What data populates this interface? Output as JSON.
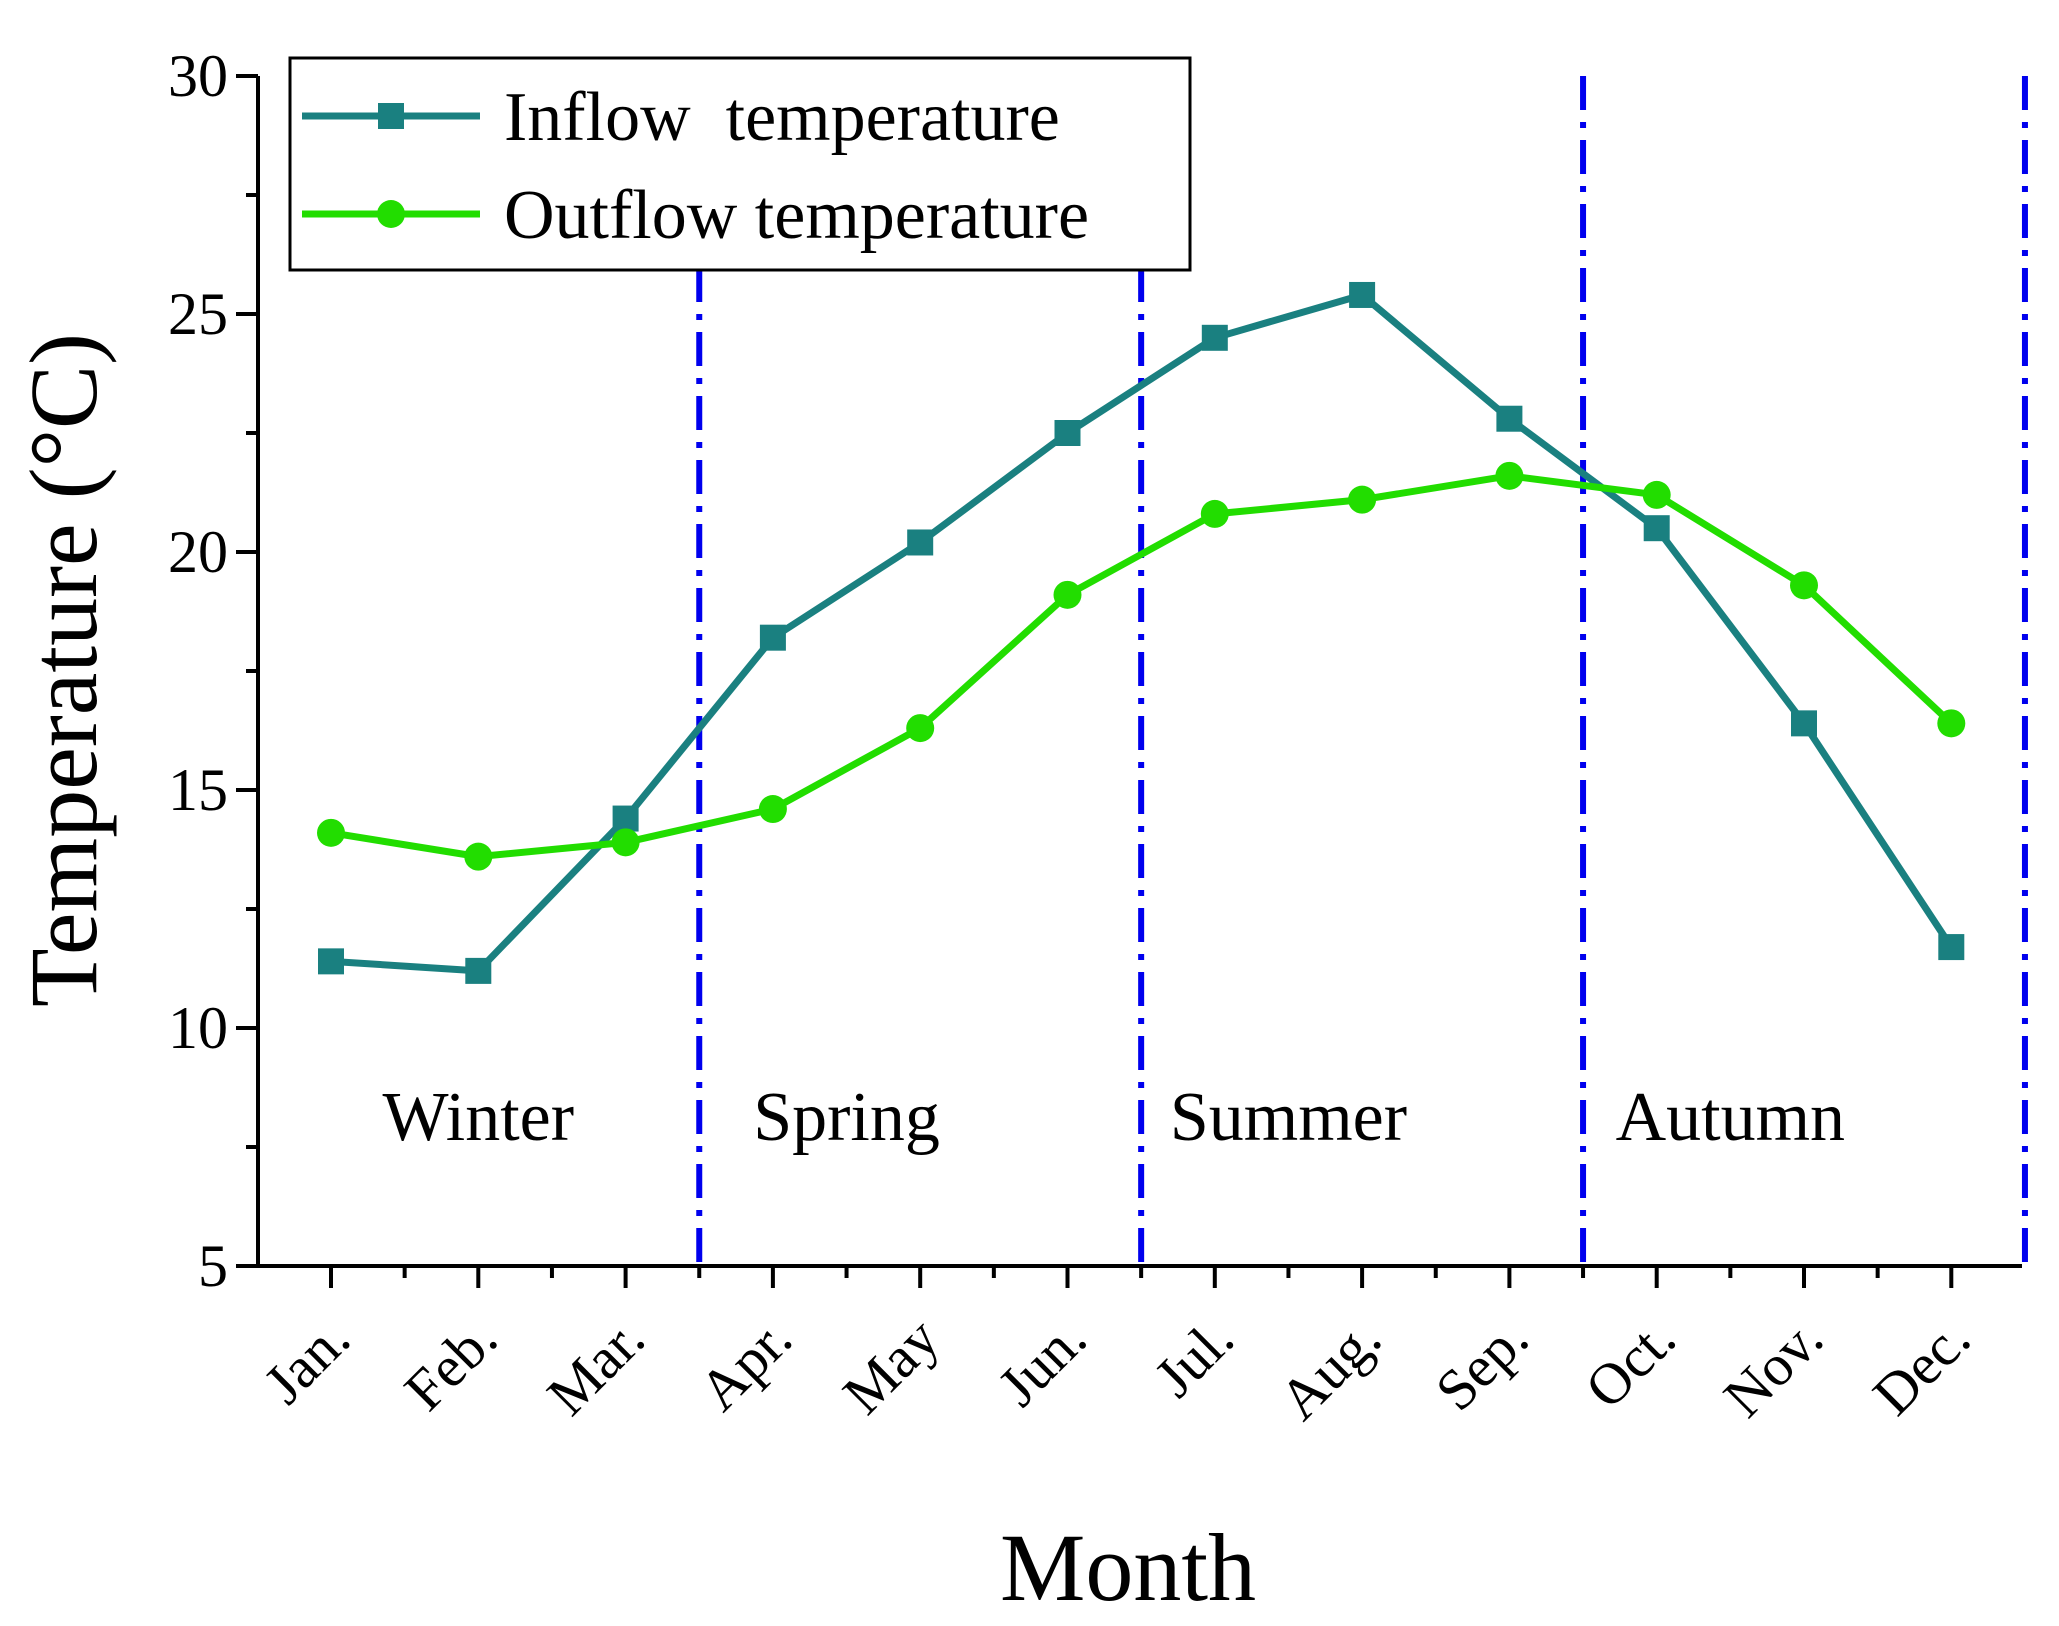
{
  "chart_data": {
    "type": "line",
    "title": "",
    "xlabel": "Month",
    "ylabel": "Temperature (°C)",
    "ylim": [
      5,
      30
    ],
    "yticks": [
      5,
      10,
      15,
      20,
      25,
      30
    ],
    "categories": [
      "Jan.",
      "Feb.",
      "Mar.",
      "Apr.",
      "May",
      "Jun.",
      "Jul.",
      "Aug.",
      "Sep.",
      "Oct.",
      "Nov.",
      "Dec."
    ],
    "series": [
      {
        "name": "Inflow  temperature",
        "color": "#1a8080",
        "marker": "square",
        "values": [
          11.4,
          11.2,
          14.4,
          18.2,
          20.2,
          22.5,
          24.5,
          25.4,
          22.8,
          20.5,
          16.4,
          11.7
        ]
      },
      {
        "name": "Outflow temperature",
        "color": "#22dd00",
        "marker": "circle",
        "values": [
          14.1,
          13.6,
          13.9,
          14.6,
          16.3,
          19.1,
          20.8,
          21.1,
          21.6,
          21.2,
          19.3,
          16.4
        ]
      }
    ],
    "season_dividers": {
      "color": "#0000ee",
      "positions": [
        2.5,
        5.5,
        8.5,
        11.5
      ]
    },
    "seasons": [
      {
        "label": "Winter",
        "center": 1.5
      },
      {
        "label": "Spring",
        "center": 4.0
      },
      {
        "label": "Summer",
        "center": 7.0
      },
      {
        "label": "Autumn",
        "center": 10.0
      }
    ],
    "legend": "top-left",
    "grid": false
  }
}
